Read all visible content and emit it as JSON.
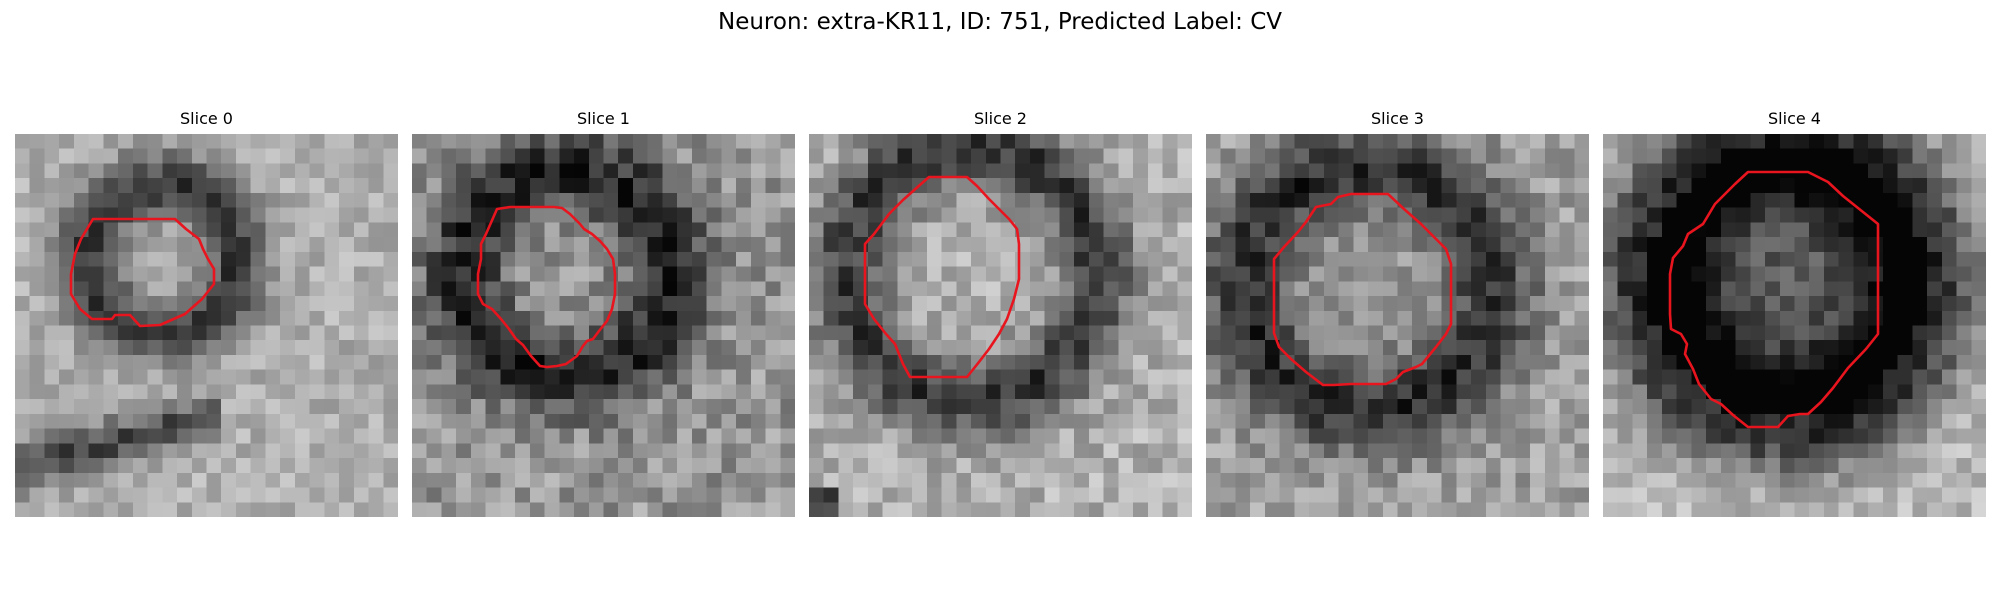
{
  "figure": {
    "title": "Neuron: extra-KR11, ID: 751, Predicted Label: CV"
  },
  "slices": [
    {
      "title": "Slice 0"
    },
    {
      "title": "Slice 1"
    },
    {
      "title": "Slice 2"
    },
    {
      "title": "Slice 3"
    },
    {
      "title": "Slice 4"
    }
  ],
  "colors": {
    "contour": "#e8141e",
    "background": "#ffffff"
  }
}
